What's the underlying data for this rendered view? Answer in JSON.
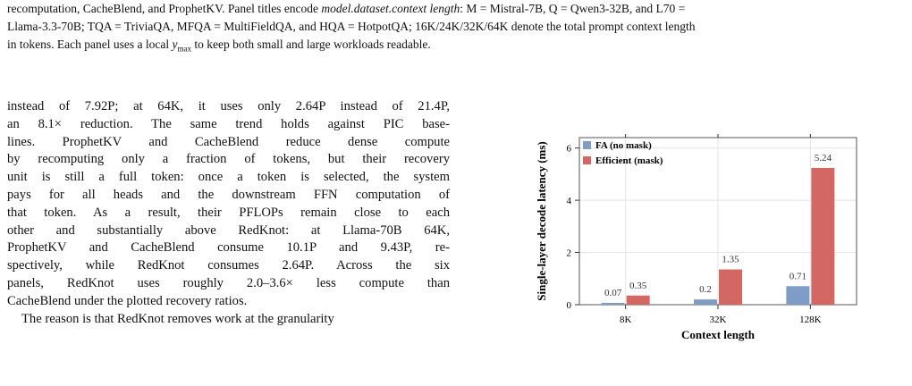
{
  "caption": {
    "line1": "recomputation, CacheBlend, and ProphetKV. Panel titles encode ",
    "line1_italic": "model.dataset.context length",
    "line1_tail": ": M = Mistral-7B, Q = Qwen3-32B, and L70 =",
    "line2": "Llama-3.3-70B; TQA = TriviaQA, MFQA = MultiFieldQA, and HQA = HotpotQA; 16K/24K/32K/64K denote the total prompt context length",
    "line3a": "in tokens. Each panel uses a local ",
    "ymax_y": "y",
    "ymax_sub": "max",
    "line3b": " to keep both small and large workloads readable."
  },
  "body": {
    "lines": [
      "instead of 7.92P; at 64K, it uses only 2.64P instead of 21.4P,",
      "an 8.1× reduction. The same trend holds against PIC base-",
      "lines.  ProphetKV and CacheBlend reduce dense compute",
      "by recomputing only a fraction of tokens, but their recovery",
      "unit is still a full token: once a token is selected, the system",
      "pays for all heads and the downstream FFN computation of",
      "that token.  As a result, their PFLOPs remain close to each",
      "other and substantially above RedKnot: at Llama-70B 64K,",
      "ProphetKV and CacheBlend consume 10.1P and 9.43P, re-",
      "spectively, while RedKnot consumes 2.64P.  Across the six",
      "panels, RedKnot  uses roughly 2.0–3.6× less compute than",
      "CacheBlend under the plotted recovery ratios."
    ],
    "para2": "The reason is that RedKnot removes work at the granularity"
  },
  "chart_data": {
    "type": "bar",
    "categories": [
      "8K",
      "32K",
      "128K"
    ],
    "series": [
      {
        "name": "FA (no mask)",
        "values": [
          0.07,
          0.2,
          0.71
        ],
        "color": "#7f9cc6"
      },
      {
        "name": "Efficient (mask)",
        "values": [
          0.35,
          1.35,
          5.24
        ],
        "color": "#d26763"
      }
    ],
    "value_labels": [
      [
        "0.07",
        "0.2",
        "0.71"
      ],
      [
        "0.35",
        "1.35",
        "5.24"
      ]
    ],
    "xlabel": "Context length",
    "ylabel": "Single-layer decode latency (ms)",
    "ylim": [
      0,
      6.4
    ],
    "yticks": [
      0,
      2,
      4,
      6
    ],
    "ytick_labels": [
      "0",
      "2",
      "4",
      "6"
    ],
    "grid": true,
    "legend_position": "top-left"
  }
}
